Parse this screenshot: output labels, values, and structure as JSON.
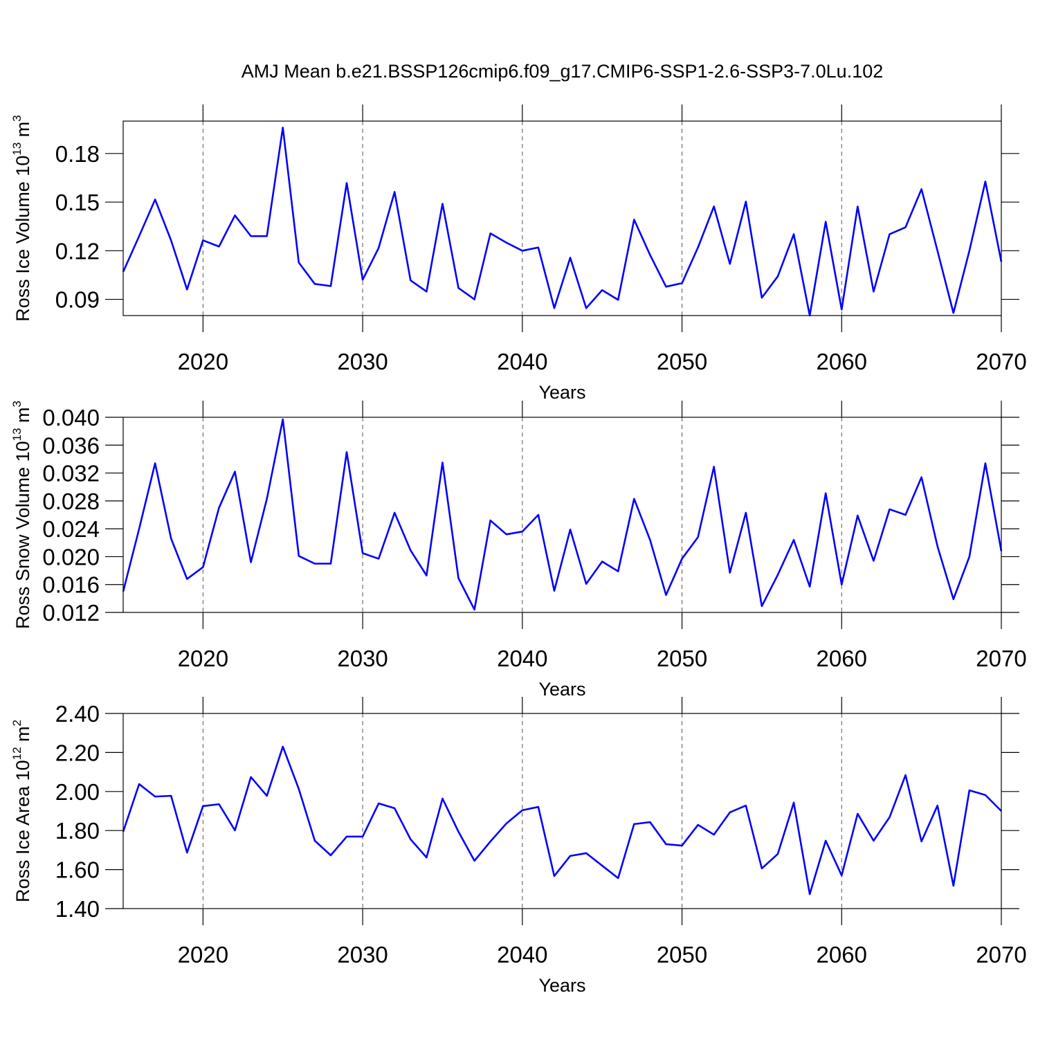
{
  "chart_data": [
    {
      "type": "line",
      "title": "AMJ Mean b.e21.BSSP126cmip6.f09_g17.CMIP6-SSP1-2.6-SSP3-7.0Lu.102",
      "xlabel": "Years",
      "ylabel": [
        "Ross Ice Volume 10",
        "13",
        " m",
        "3"
      ],
      "x": [
        2015,
        2016,
        2017,
        2018,
        2019,
        2020,
        2021,
        2022,
        2023,
        2024,
        2025,
        2026,
        2027,
        2028,
        2029,
        2030,
        2031,
        2032,
        2033,
        2034,
        2035,
        2036,
        2037,
        2038,
        2039,
        2040,
        2041,
        2042,
        2043,
        2044,
        2045,
        2046,
        2047,
        2048,
        2049,
        2050,
        2051,
        2052,
        2053,
        2054,
        2055,
        2056,
        2057,
        2058,
        2059,
        2060,
        2061,
        2062,
        2063,
        2064,
        2065,
        2066,
        2067,
        2068,
        2069,
        2070
      ],
      "series": [
        {
          "color": "#0000ff",
          "values": [
            0.107,
            0.129,
            0.1516,
            0.1264,
            0.0961,
            0.1264,
            0.1226,
            0.1418,
            0.129,
            0.129,
            0.196,
            0.1127,
            0.0995,
            0.0982,
            0.1618,
            0.1021,
            0.1217,
            0.1563,
            0.1017,
            0.0948,
            0.149,
            0.097,
            0.09,
            0.1307,
            0.125,
            0.12,
            0.122,
            0.0846,
            0.1157,
            0.0846,
            0.0957,
            0.0897,
            0.1392,
            0.1174,
            0.0978,
            0.1,
            0.122,
            0.1473,
            0.1119,
            0.1503,
            0.091,
            0.1042,
            0.1302,
            0.08,
            0.1379,
            0.0837,
            0.1473,
            0.0948,
            0.1302,
            0.1345,
            0.158,
            0.12,
            0.0816,
            0.12,
            0.1627,
            0.1132
          ]
        }
      ],
      "xlim": [
        2015,
        2070
      ],
      "xticks": [
        2020,
        2030,
        2040,
        2050,
        2060,
        2070
      ],
      "ylim": [
        0.08,
        0.2
      ],
      "yticks": [
        0.09,
        0.12,
        0.15,
        0.18
      ],
      "grid": true
    },
    {
      "type": "line",
      "xlabel": "Years",
      "ylabel": [
        "Ross Snow Volume 10",
        "13",
        " m",
        "3"
      ],
      "x": [
        2015,
        2016,
        2017,
        2018,
        2019,
        2020,
        2021,
        2022,
        2023,
        2024,
        2025,
        2026,
        2027,
        2028,
        2029,
        2030,
        2031,
        2032,
        2033,
        2034,
        2035,
        2036,
        2037,
        2038,
        2039,
        2040,
        2041,
        2042,
        2043,
        2044,
        2045,
        2046,
        2047,
        2048,
        2049,
        2050,
        2051,
        2052,
        2053,
        2054,
        2055,
        2056,
        2057,
        2058,
        2059,
        2060,
        2061,
        2062,
        2063,
        2064,
        2065,
        2066,
        2067,
        2068,
        2069,
        2070
      ],
      "series": [
        {
          "color": "#0000ff",
          "values": [
            0.015,
            0.024,
            0.0334,
            0.0226,
            0.0168,
            0.0185,
            0.027,
            0.0322,
            0.0192,
            0.0283,
            0.0397,
            0.0201,
            0.019,
            0.019,
            0.035,
            0.0205,
            0.0197,
            0.0263,
            0.0209,
            0.0173,
            0.0335,
            0.0169,
            0.0124,
            0.0252,
            0.0232,
            0.0236,
            0.026,
            0.0151,
            0.0239,
            0.0161,
            0.0193,
            0.0179,
            0.0283,
            0.0224,
            0.0145,
            0.0197,
            0.0228,
            0.0329,
            0.0177,
            0.0263,
            0.0129,
            0.0174,
            0.0224,
            0.0157,
            0.0291,
            0.016,
            0.0259,
            0.0194,
            0.0268,
            0.026,
            0.0314,
            0.0215,
            0.0139,
            0.02,
            0.0334,
            0.0208
          ]
        }
      ],
      "xlim": [
        2015,
        2070
      ],
      "xticks": [
        2020,
        2030,
        2040,
        2050,
        2060,
        2070
      ],
      "ylim": [
        0.012,
        0.04
      ],
      "yticks": [
        0.012,
        0.016,
        {
          "value": 0.02,
          "label": "0.020"
        },
        0.024,
        0.028,
        0.032,
        0.036,
        {
          "value": 0.04,
          "label": "0.040"
        }
      ],
      "grid": true
    },
    {
      "type": "line",
      "xlabel": "Years",
      "ylabel": [
        "Ross Ice Area 10",
        "12",
        " m",
        "2"
      ],
      "x": [
        2015,
        2016,
        2017,
        2018,
        2019,
        2020,
        2021,
        2022,
        2023,
        2024,
        2025,
        2026,
        2027,
        2028,
        2029,
        2030,
        2031,
        2032,
        2033,
        2034,
        2035,
        2036,
        2037,
        2038,
        2039,
        2040,
        2041,
        2042,
        2043,
        2044,
        2045,
        2046,
        2047,
        2048,
        2049,
        2050,
        2051,
        2052,
        2053,
        2054,
        2055,
        2056,
        2057,
        2058,
        2059,
        2060,
        2061,
        2062,
        2063,
        2064,
        2065,
        2066,
        2067,
        2068,
        2069,
        2070
      ],
      "series": [
        {
          "color": "#0000ff",
          "values": [
            1.794,
            2.038,
            1.974,
            1.978,
            1.687,
            1.925,
            1.935,
            1.801,
            2.074,
            1.978,
            2.23,
            2.013,
            1.748,
            1.673,
            1.769,
            1.769,
            1.939,
            1.914,
            1.755,
            1.662,
            1.964,
            1.794,
            1.645,
            1.744,
            1.836,
            1.904,
            1.921,
            1.567,
            1.67,
            1.684,
            1.62,
            1.556,
            1.833,
            1.843,
            1.73,
            1.723,
            1.829,
            1.779,
            1.893,
            1.928,
            1.606,
            1.68,
            1.943,
            1.474,
            1.748,
            1.57,
            1.886,
            1.748,
            1.868,
            2.084,
            1.744,
            1.928,
            1.517,
            2.006,
            1.982,
            1.9
          ]
        }
      ],
      "xlim": [
        2015,
        2070
      ],
      "xticks": [
        2020,
        2030,
        2040,
        2050,
        2060,
        2070
      ],
      "ylim": [
        1.4,
        2.4
      ],
      "yticks": [
        {
          "value": 1.4,
          "label": "1.40"
        },
        {
          "value": 1.6,
          "label": "1.60"
        },
        {
          "value": 1.8,
          "label": "1.80"
        },
        {
          "value": 2.0,
          "label": "2.00"
        },
        {
          "value": 2.2,
          "label": "2.20"
        },
        {
          "value": 2.4,
          "label": "2.40"
        }
      ],
      "grid": true
    }
  ]
}
